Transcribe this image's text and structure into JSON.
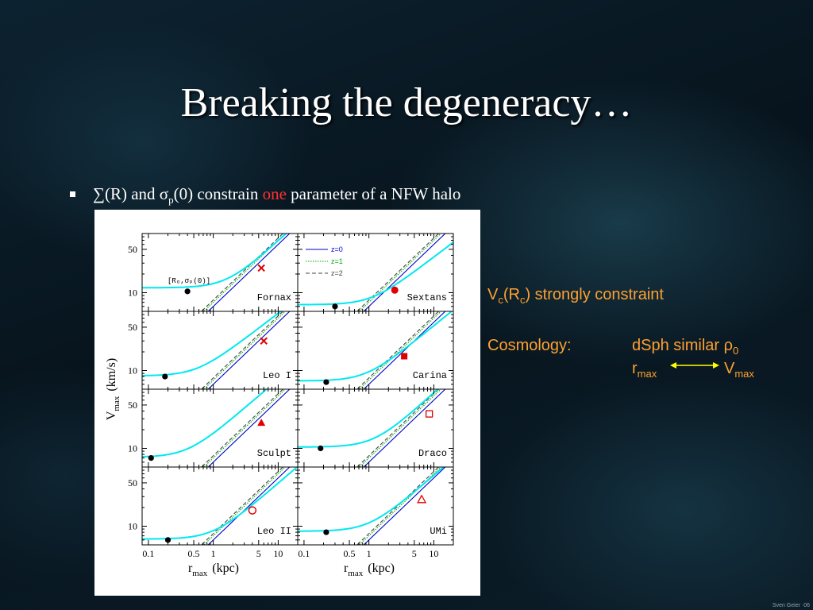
{
  "slide": {
    "title": "Breaking the degeneracy…",
    "bullet_pre": "∑(R) and σ",
    "bullet_sub": "p",
    "bullet_mid": "(0) constrain ",
    "bullet_red": "one",
    "bullet_post": " parameter of a NFW halo",
    "vc_V": "V",
    "vc_sub_c": "c",
    "vc_R": "(R",
    "vc_sub_c2": "c",
    "vc_rest": ") strongly constraint",
    "cosmology_label": "Cosmology:",
    "dsph_text": "dSph similar ρ",
    "dsph_sub": "0",
    "rmax_r": "r",
    "rmax_sub": "max",
    "vmax_V": "V",
    "vmax_sub": "max",
    "credit": "Sven Geier ·06"
  },
  "colors": {
    "text_orange": "#ffa030",
    "emphasis_red": "#ff3030",
    "curve_cyan": "#00e8f0",
    "marker_red": "#e00000",
    "arrow_yellow": "#ffff00"
  },
  "chart_data": {
    "type": "line",
    "xlabel": "r",
    "xlabel_sub": "max",
    "xlabel_unit": "(kpc)",
    "ylabel": "V",
    "ylabel_sub": "max",
    "ylabel_unit": "(km/s)",
    "xscale": "log",
    "yscale": "log",
    "xlim": [
      0.08,
      20
    ],
    "ylim": [
      5,
      90
    ],
    "x_ticks": [
      "0.1",
      "0.5",
      "1",
      "5",
      "10"
    ],
    "x_tick_values": [
      0.1,
      0.5,
      1,
      5,
      10
    ],
    "y_ticks": [
      "10",
      "50"
    ],
    "y_tick_values": [
      10,
      50
    ],
    "legend": [
      {
        "label": "z=0",
        "style": "solid",
        "color": "#0000cc"
      },
      {
        "label": "z=1",
        "style": "dotted",
        "color": "#00aa00"
      },
      {
        "label": "z=2",
        "style": "dashed",
        "color": "#444444"
      }
    ],
    "inset_label": "[Rₒ,σₚ(0)]",
    "nfw_relation": {
      "z0_coeff": 6.0,
      "z1_coeff": 7.0,
      "z2_coeff": 7.6,
      "slope": 1.0
    },
    "panels": [
      {
        "name": "Fornax",
        "dot": [
          0.4,
          10.5
        ],
        "marker": "x",
        "constraint": [
          5.5,
          25
        ],
        "curve_v0": 12.0,
        "curve_r": 1.6,
        "curve_p": 0.95
      },
      {
        "name": "Sextans",
        "dot": [
          0.3,
          6.0
        ],
        "marker": "filled-circle",
        "constraint": [
          2.5,
          11
        ],
        "curve_v0": 6.4,
        "curve_r": 1.1,
        "curve_p": 0.8
      },
      {
        "name": "Leo I",
        "dot": [
          0.18,
          8.0
        ],
        "marker": "x",
        "constraint": [
          6.0,
          30
        ],
        "curve_v0": 8.2,
        "curve_r": 0.55,
        "curve_p": 0.8
      },
      {
        "name": "Carina",
        "dot": [
          0.22,
          6.5
        ],
        "marker": "filled-square",
        "constraint": [
          3.5,
          17
        ],
        "curve_v0": 6.8,
        "curve_r": 0.9,
        "curve_p": 0.85
      },
      {
        "name": "Sculpt",
        "dot": [
          0.11,
          7.0
        ],
        "marker": "filled-triangle",
        "constraint": [
          5.5,
          26
        ],
        "curve_v0": 7.2,
        "curve_r": 0.4,
        "curve_p": 0.9
      },
      {
        "name": "Draco",
        "dot": [
          0.18,
          10.0
        ],
        "marker": "open-square",
        "constraint": [
          8.5,
          36
        ],
        "curve_v0": 10.5,
        "curve_r": 1.2,
        "curve_p": 0.95
      },
      {
        "name": "Leo II",
        "dot": [
          0.2,
          6.0
        ],
        "marker": "open-circle",
        "constraint": [
          4.0,
          18
        ],
        "curve_v0": 6.2,
        "curve_r": 1.0,
        "curve_p": 0.9
      },
      {
        "name": "UMi",
        "dot": [
          0.22,
          8.0
        ],
        "marker": "open-triangle",
        "constraint": [
          6.5,
          27
        ],
        "curve_v0": 8.3,
        "curve_r": 1.0,
        "curve_p": 0.9
      }
    ]
  }
}
